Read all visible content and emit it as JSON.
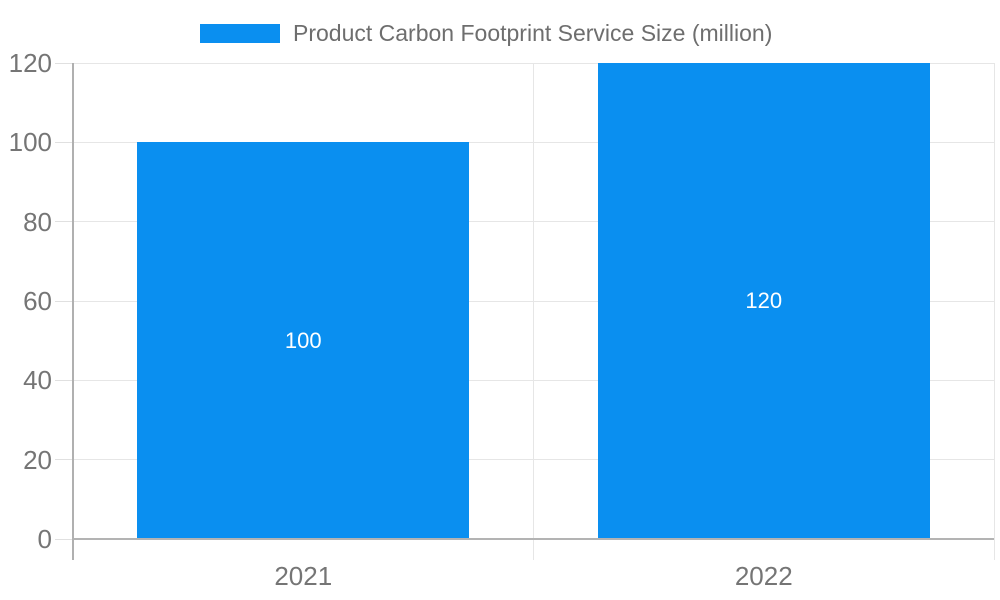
{
  "legend": {
    "label": "Product Carbon Footprint Service Size (million)"
  },
  "colors": {
    "bar": "#0A8FF0",
    "grid": "#E6E6E6",
    "baseline": "#B3B3B3",
    "axis_line": "#B0B0B0",
    "tick": "#E0E0E0",
    "axis_text": "#757575",
    "legend_text": "#6E6E6E",
    "bar_label_text": "#FFFFFF",
    "background": "#FFFFFF"
  },
  "chart_data": {
    "type": "bar",
    "title": "Product Carbon Footprint Service Size (million)",
    "legend_entries": [
      "Product Carbon Footprint Service Size (million)"
    ],
    "legend_position": "top",
    "categories": [
      "2021",
      "2022"
    ],
    "series": [
      {
        "name": "Product Carbon Footprint Service Size (million)",
        "values": [
          100,
          120
        ],
        "color": "#0A8FF0"
      }
    ],
    "data_labels": [
      "100",
      "120"
    ],
    "xlabel": "",
    "ylabel": "",
    "ylim": [
      0,
      120
    ],
    "yticks": [
      0,
      20,
      40,
      60,
      80,
      100,
      120
    ],
    "grid": true,
    "background": "#FFFFFF"
  }
}
